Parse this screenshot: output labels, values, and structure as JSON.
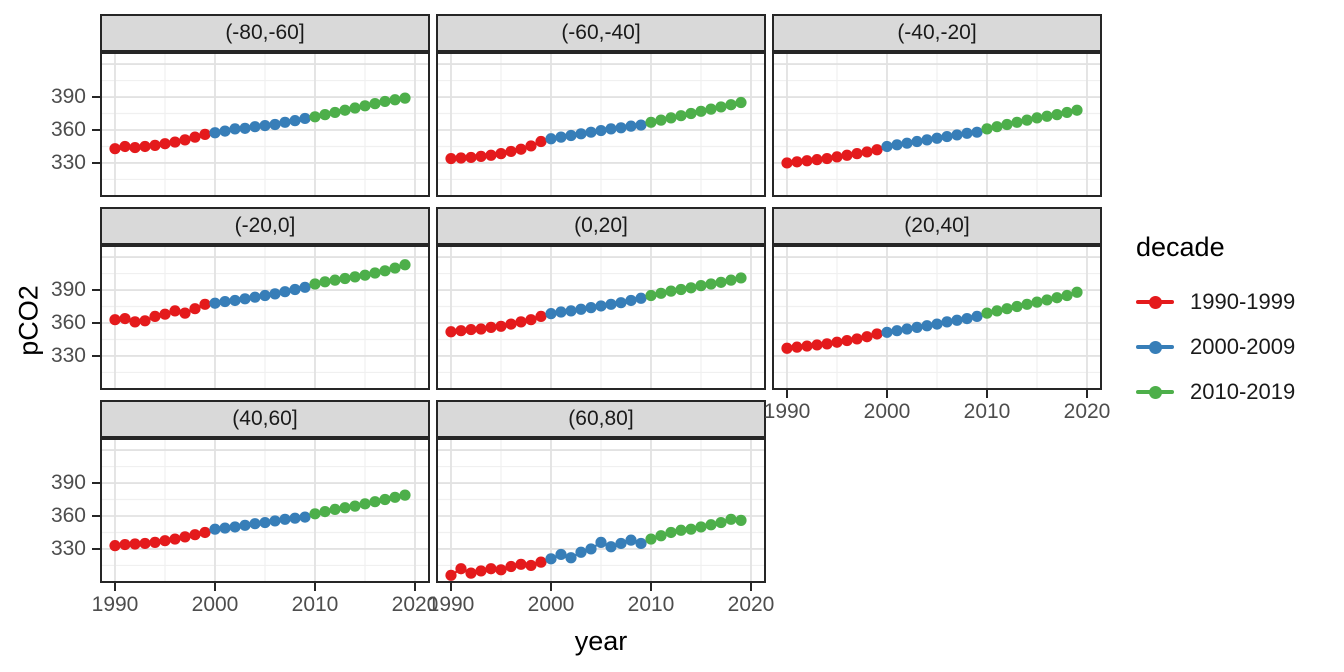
{
  "chart_data": {
    "type": "scatter",
    "title": "",
    "xlabel": "year",
    "ylabel": "pCO2",
    "x_domain": [
      1988.5,
      2021.5
    ],
    "y_domain": [
      299,
      431
    ],
    "x_ticks": [
      1990,
      2000,
      2010,
      2020
    ],
    "y_ticks": [
      330,
      360,
      390
    ],
    "x_grid_major": [
      1990,
      2000,
      2010,
      2020
    ],
    "x_grid_minor": [
      1995,
      2005,
      2015
    ],
    "y_grid_major": [
      300,
      330,
      360,
      390,
      420
    ],
    "y_grid_minor": [
      315,
      345,
      375,
      405
    ],
    "grid": true,
    "years_start": 1990,
    "legend": {
      "title": "decade",
      "position": "right",
      "entries": [
        {
          "label": "1990-1999",
          "color": "#E41A1C"
        },
        {
          "label": "2000-2009",
          "color": "#377EB8"
        },
        {
          "label": "2010-2019",
          "color": "#4DAF4A"
        }
      ]
    },
    "decade_spans": [
      [
        0,
        9
      ],
      [
        10,
        19
      ],
      [
        20,
        29
      ]
    ],
    "facets": [
      {
        "label": "(-80,-60]",
        "values": [
          343,
          345,
          344,
          345,
          346,
          347.5,
          349,
          351,
          353.5,
          356,
          357.5,
          359,
          361,
          361.5,
          363,
          364,
          365,
          367,
          368.5,
          370.5,
          372,
          374,
          376,
          378,
          380,
          382,
          384,
          386,
          387.5,
          389
        ]
      },
      {
        "label": "(-60,-40]",
        "values": [
          334,
          334.5,
          335,
          336,
          337,
          338.5,
          340.5,
          342.5,
          345.5,
          349.5,
          352,
          353.5,
          355,
          356.5,
          358,
          359.5,
          361,
          362,
          363.5,
          364.5,
          367,
          369,
          371,
          373,
          375,
          377,
          379,
          381,
          383,
          385
        ]
      },
      {
        "label": "(-40,-20]",
        "values": [
          330,
          331,
          332,
          333,
          334,
          335.5,
          337,
          338.5,
          340,
          342,
          345,
          346.5,
          348,
          349.5,
          351,
          352.5,
          354,
          355.5,
          357,
          358,
          361,
          363,
          365,
          367,
          369,
          371,
          372.5,
          374,
          376,
          378
        ]
      },
      {
        "label": "(-20,0]",
        "values": [
          363,
          364,
          361,
          362,
          366,
          368,
          371,
          369,
          373,
          377,
          378,
          379.5,
          380.5,
          382,
          383.5,
          385,
          386.5,
          388.5,
          390.5,
          392.5,
          395.5,
          397.5,
          399,
          400.5,
          402,
          403.5,
          405.5,
          407.5,
          410,
          413
        ]
      },
      {
        "label": "(0,20]",
        "values": [
          352,
          353,
          354,
          354.5,
          356,
          357,
          359,
          361,
          363,
          366,
          368.5,
          370,
          371,
          372.5,
          374,
          375.5,
          377,
          378.5,
          380.5,
          382.5,
          385,
          387,
          389,
          390.5,
          392,
          394,
          395.5,
          397,
          399,
          401
        ]
      },
      {
        "label": "(20,40]",
        "values": [
          337,
          338,
          339,
          340,
          341,
          342.5,
          344,
          345.5,
          347.5,
          350,
          351.5,
          353,
          354.5,
          356,
          357.5,
          359,
          361,
          362.5,
          364,
          366,
          369,
          371,
          373,
          375,
          377,
          379,
          381,
          383,
          385,
          388
        ]
      },
      {
        "label": "(40,60]",
        "values": [
          333,
          334,
          334.5,
          335,
          336,
          337.5,
          339,
          341,
          343,
          345,
          348,
          349,
          350,
          351.5,
          353,
          354,
          355.5,
          357,
          358,
          359,
          362,
          364,
          366,
          367.5,
          369,
          371,
          373,
          375,
          377,
          379
        ]
      },
      {
        "label": "(60,80]",
        "values": [
          306,
          312,
          308,
          310,
          312,
          311,
          314,
          316,
          315,
          318,
          321,
          325,
          322,
          327,
          330,
          336,
          332,
          335,
          338,
          335,
          339,
          342,
          345,
          347,
          348,
          350,
          352,
          354,
          357,
          356
        ]
      }
    ],
    "style": {
      "strip_fill": "#d9d9d9",
      "panel_border": "#262626",
      "grid_major_color": "#e2e2e2",
      "grid_minor_color": "#f0f0f0",
      "tick_label_color": "#4d4d4d"
    }
  }
}
